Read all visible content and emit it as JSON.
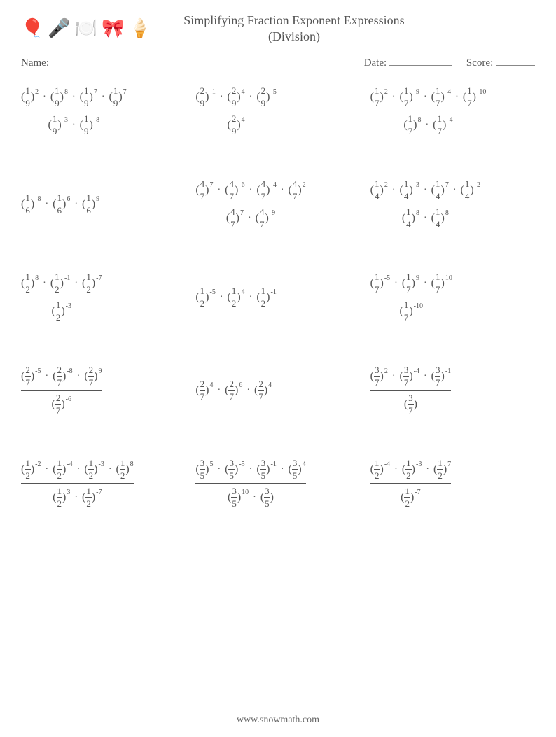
{
  "title_line1": "Simplifying Fraction Exponent Expressions",
  "title_line2": "(Division)",
  "labels": {
    "name": "Name:",
    "date": "Date:",
    "score": "Score:"
  },
  "underline_widths": {
    "name": 110,
    "date": 90,
    "score": 56
  },
  "footer": "www.snowmath.com",
  "colors": {
    "text": "#555555",
    "line": "#555555"
  },
  "icons": [
    {
      "name": "balloons",
      "emoji": "🎈"
    },
    {
      "name": "microphone",
      "emoji": "🎤"
    },
    {
      "name": "cloche",
      "emoji": "🍽️"
    },
    {
      "name": "bowtie",
      "emoji": "🎀"
    },
    {
      "name": "icecream",
      "emoji": "🍦"
    }
  ],
  "problems": [
    {
      "num": [
        {
          "f": "1/9",
          "e": "2"
        },
        {
          "f": "1/9",
          "e": "8"
        },
        {
          "f": "1/9",
          "e": "7"
        },
        {
          "f": "1/9",
          "e": "7"
        }
      ],
      "den": [
        {
          "f": "1/9",
          "e": "-3"
        },
        {
          "f": "1/9",
          "e": "-8"
        }
      ]
    },
    {
      "num": [
        {
          "f": "2/9",
          "e": "-1"
        },
        {
          "f": "2/9",
          "e": "4"
        },
        {
          "f": "2/9",
          "e": "-5"
        }
      ],
      "den": [
        {
          "f": "2/9",
          "e": "4"
        }
      ]
    },
    {
      "num": [
        {
          "f": "1/7",
          "e": "2"
        },
        {
          "f": "1/7",
          "e": "-9"
        },
        {
          "f": "1/7",
          "e": "-4"
        },
        {
          "f": "1/7",
          "e": "-10"
        }
      ],
      "den": [
        {
          "f": "1/7",
          "e": "8"
        },
        {
          "f": "1/7",
          "e": "-4"
        }
      ]
    },
    {
      "num": [
        {
          "f": "1/6",
          "e": "-8"
        },
        {
          "f": "1/6",
          "e": "6"
        },
        {
          "f": "1/6",
          "e": "9"
        }
      ],
      "den": null
    },
    {
      "num": [
        {
          "f": "4/7",
          "e": "7"
        },
        {
          "f": "4/7",
          "e": "-6"
        },
        {
          "f": "4/7",
          "e": "-4"
        },
        {
          "f": "4/7",
          "e": "2"
        }
      ],
      "den": [
        {
          "f": "4/7",
          "e": "7"
        },
        {
          "f": "4/7",
          "e": "-9"
        }
      ]
    },
    {
      "num": [
        {
          "f": "1/4",
          "e": "2"
        },
        {
          "f": "1/4",
          "e": "-3"
        },
        {
          "f": "1/4",
          "e": "7"
        },
        {
          "f": "1/4",
          "e": "-2"
        }
      ],
      "den": [
        {
          "f": "1/4",
          "e": "8"
        },
        {
          "f": "1/4",
          "e": "8"
        }
      ]
    },
    {
      "num": [
        {
          "f": "1/2",
          "e": "8"
        },
        {
          "f": "1/2",
          "e": "-1"
        },
        {
          "f": "1/2",
          "e": "-7"
        }
      ],
      "den": [
        {
          "f": "1/2",
          "e": "-3"
        }
      ]
    },
    {
      "num": [
        {
          "f": "1/2",
          "e": "-5"
        },
        {
          "f": "1/2",
          "e": "4"
        },
        {
          "f": "1/2",
          "e": "-1"
        }
      ],
      "den": null
    },
    {
      "num": [
        {
          "f": "1/7",
          "e": "-5"
        },
        {
          "f": "1/7",
          "e": "9"
        },
        {
          "f": "1/7",
          "e": "10"
        }
      ],
      "den": [
        {
          "f": "1/7",
          "e": "-10"
        }
      ]
    },
    {
      "num": [
        {
          "f": "2/7",
          "e": "-5"
        },
        {
          "f": "2/7",
          "e": "-8"
        },
        {
          "f": "2/7",
          "e": "9"
        }
      ],
      "den": [
        {
          "f": "2/7",
          "e": "-6"
        }
      ]
    },
    {
      "num": [
        {
          "f": "2/7",
          "e": "4"
        },
        {
          "f": "2/7",
          "e": "6"
        },
        {
          "f": "2/7",
          "e": "4"
        }
      ],
      "den": null
    },
    {
      "num": [
        {
          "f": "3/7",
          "e": "2"
        },
        {
          "f": "3/7",
          "e": "-4"
        },
        {
          "f": "3/7",
          "e": "-1"
        }
      ],
      "den": [
        {
          "f": "3/7",
          "e": ""
        }
      ]
    },
    {
      "num": [
        {
          "f": "1/2",
          "e": "-2"
        },
        {
          "f": "1/2",
          "e": "-4"
        },
        {
          "f": "1/2",
          "e": "-3"
        },
        {
          "f": "1/2",
          "e": "8"
        }
      ],
      "den": [
        {
          "f": "1/2",
          "e": "3"
        },
        {
          "f": "1/2",
          "e": "-7"
        }
      ]
    },
    {
      "num": [
        {
          "f": "3/5",
          "e": "5"
        },
        {
          "f": "3/5",
          "e": "-5"
        },
        {
          "f": "3/5",
          "e": "-1"
        },
        {
          "f": "3/5",
          "e": "4"
        }
      ],
      "den": [
        {
          "f": "3/5",
          "e": "10"
        },
        {
          "f": "3/5",
          "e": ""
        }
      ]
    },
    {
      "num": [
        {
          "f": "1/2",
          "e": "-4"
        },
        {
          "f": "1/2",
          "e": "-3"
        },
        {
          "f": "1/2",
          "e": "7"
        }
      ],
      "den": [
        {
          "f": "1/2",
          "e": "-7"
        }
      ]
    }
  ]
}
